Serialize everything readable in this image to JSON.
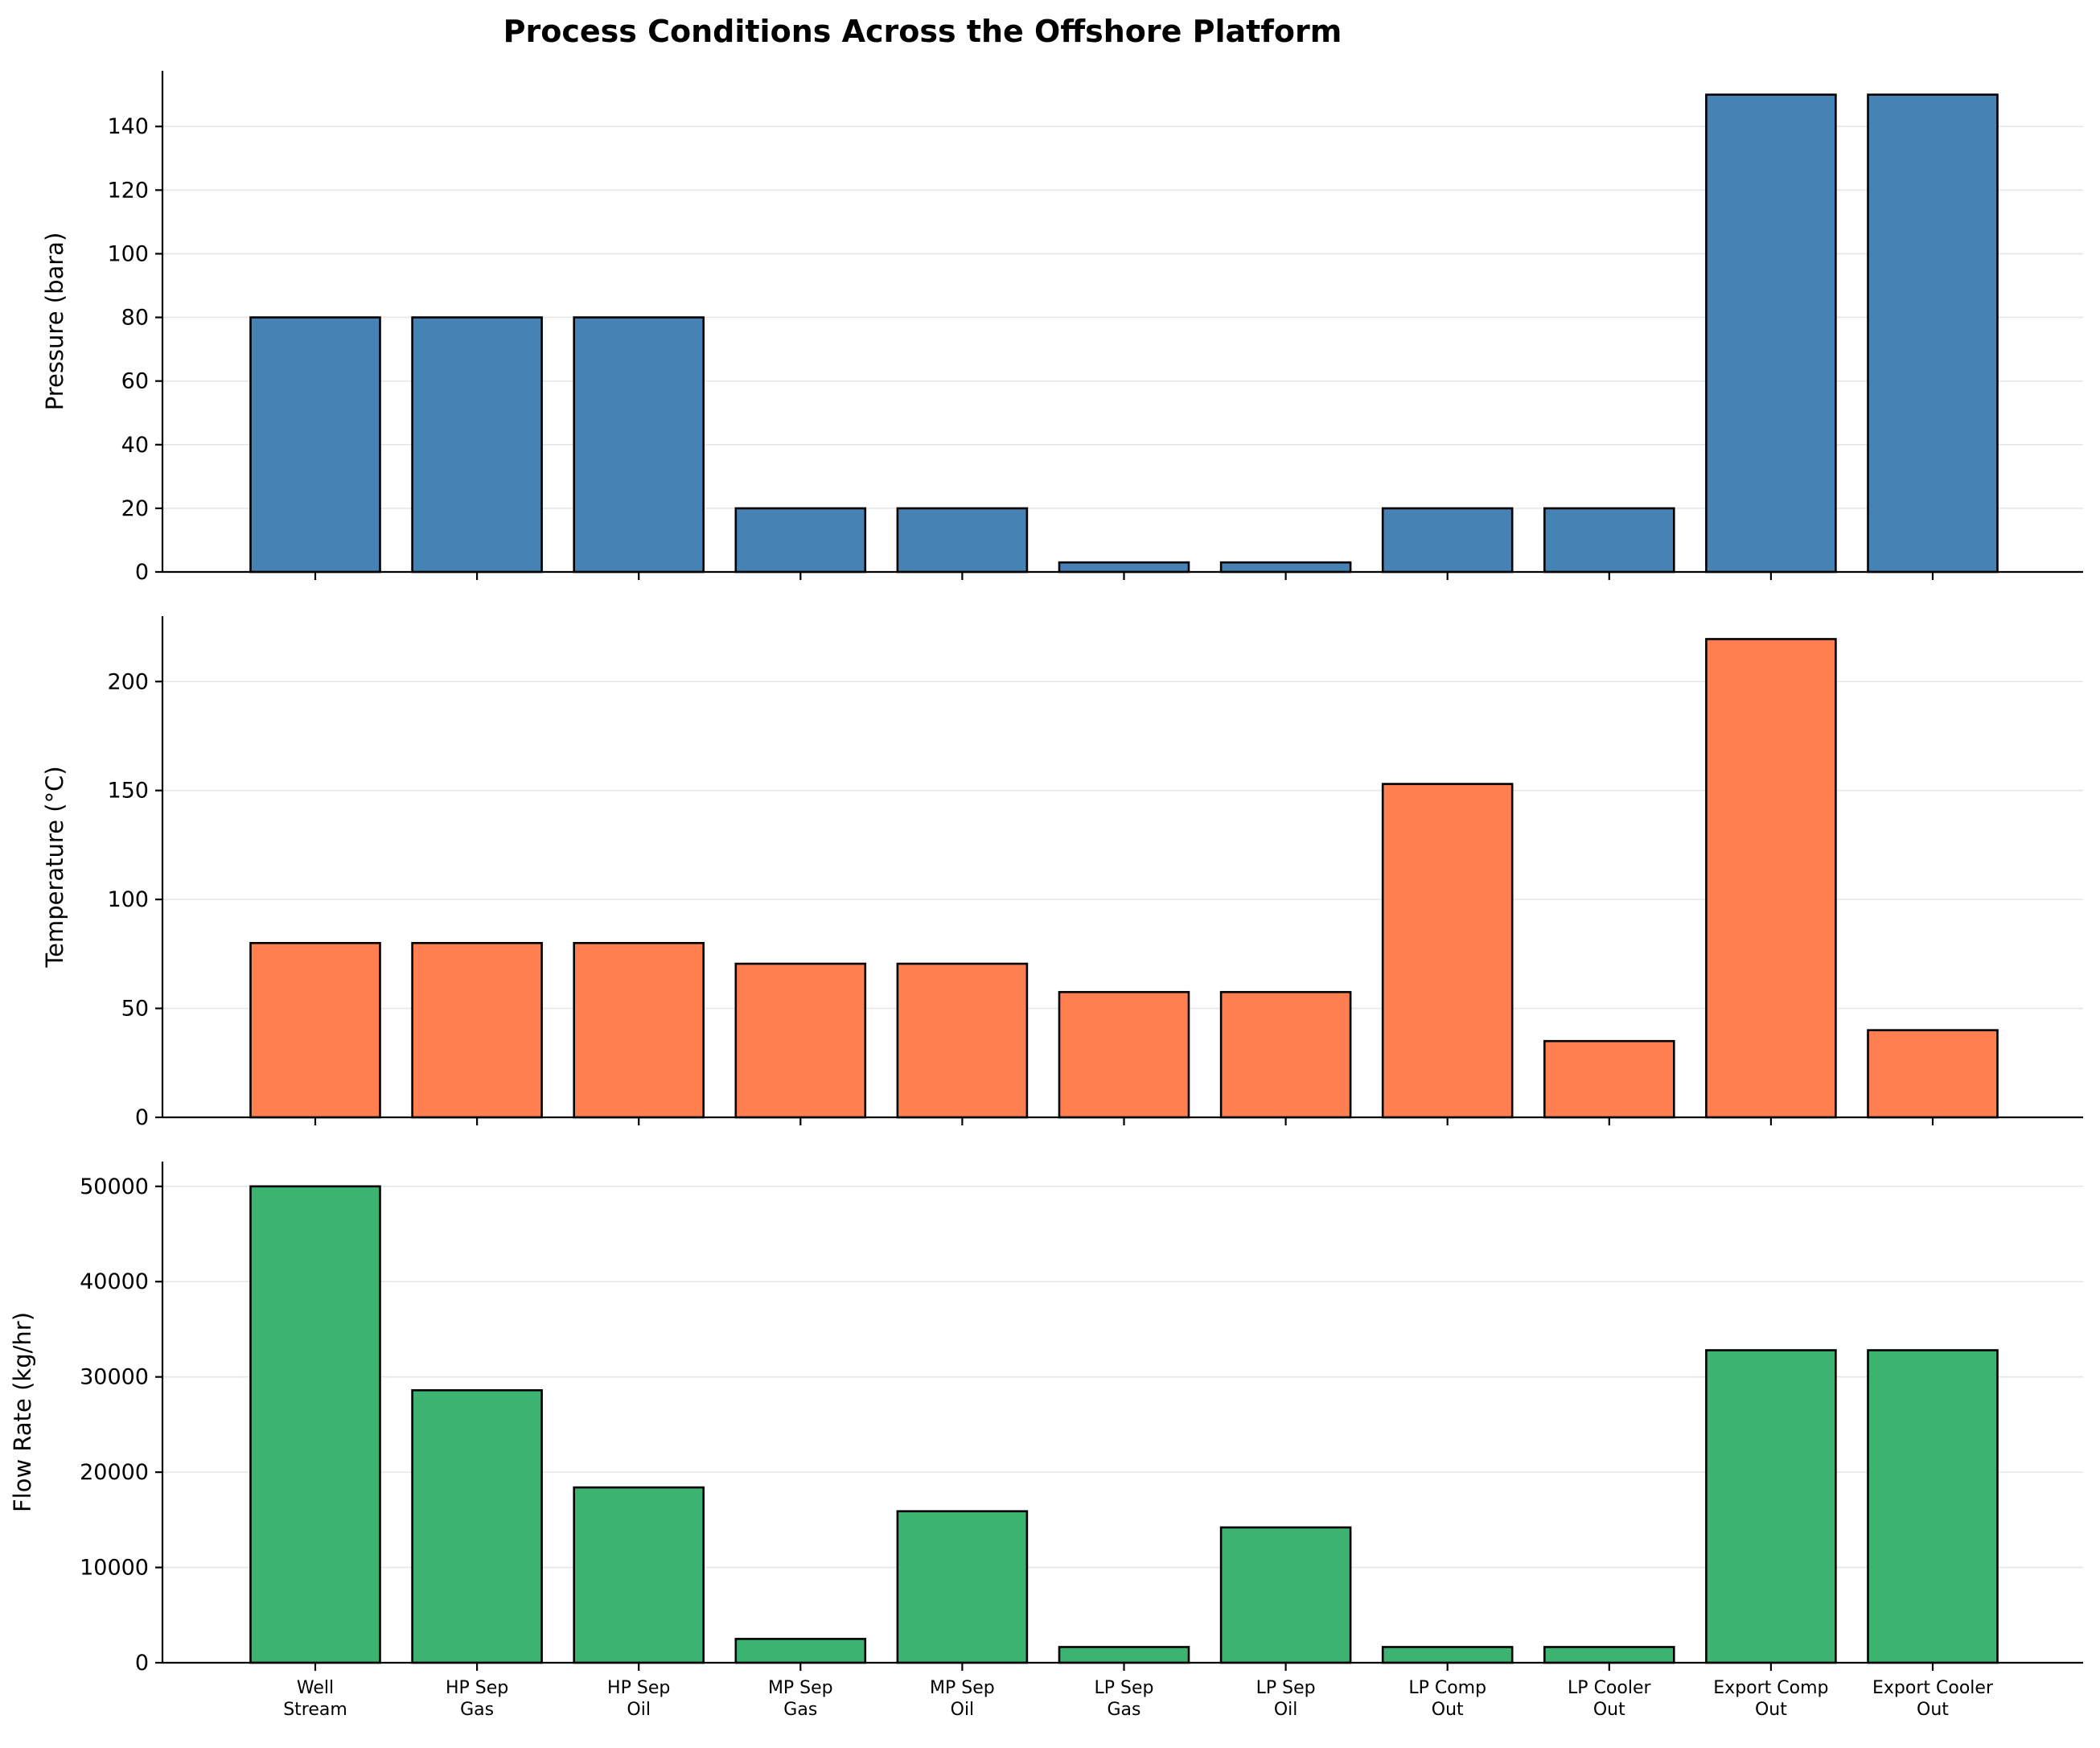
{
  "chart_data": {
    "title": "Process Conditions Across the Offshore Platform",
    "type": "bar",
    "categories": [
      [
        "Well",
        "Stream"
      ],
      [
        "HP Sep",
        "Gas"
      ],
      [
        "HP Sep",
        "Oil"
      ],
      [
        "MP Sep",
        "Gas"
      ],
      [
        "MP Sep",
        "Oil"
      ],
      [
        "LP Sep",
        "Gas"
      ],
      [
        "LP Sep",
        "Oil"
      ],
      [
        "LP Comp",
        "Out"
      ],
      [
        "LP Cooler",
        "Out"
      ],
      [
        "Export Comp",
        "Out"
      ],
      [
        "Export Cooler",
        "Out"
      ]
    ],
    "grid": true,
    "legend": "none",
    "panels": [
      {
        "ylabel": "Pressure (bara)",
        "color": "#4682b4",
        "ylim": [
          0,
          157.5
        ],
        "yticks": [
          0,
          20,
          40,
          60,
          80,
          100,
          120,
          140
        ],
        "values": [
          80,
          80,
          80,
          20,
          20,
          3,
          3,
          20,
          20,
          150,
          150
        ]
      },
      {
        "ylabel": "Temperature (°C)",
        "color": "#ff7f50",
        "ylim": [
          0,
          230
        ],
        "yticks": [
          0,
          50,
          100,
          150,
          200
        ],
        "values": [
          80,
          80,
          80,
          70.5,
          70.5,
          57.5,
          57.5,
          153,
          35,
          219.5,
          40
        ]
      },
      {
        "ylabel": "Flow Rate (kg/hr)",
        "color": "#3cb371",
        "ylim": [
          0,
          52600
        ],
        "yticks": [
          0,
          10000,
          20000,
          30000,
          40000,
          50000
        ],
        "values": [
          50000,
          28600,
          18400,
          2500,
          15900,
          1650,
          14200,
          1650,
          1650,
          32800,
          32800
        ]
      }
    ]
  }
}
